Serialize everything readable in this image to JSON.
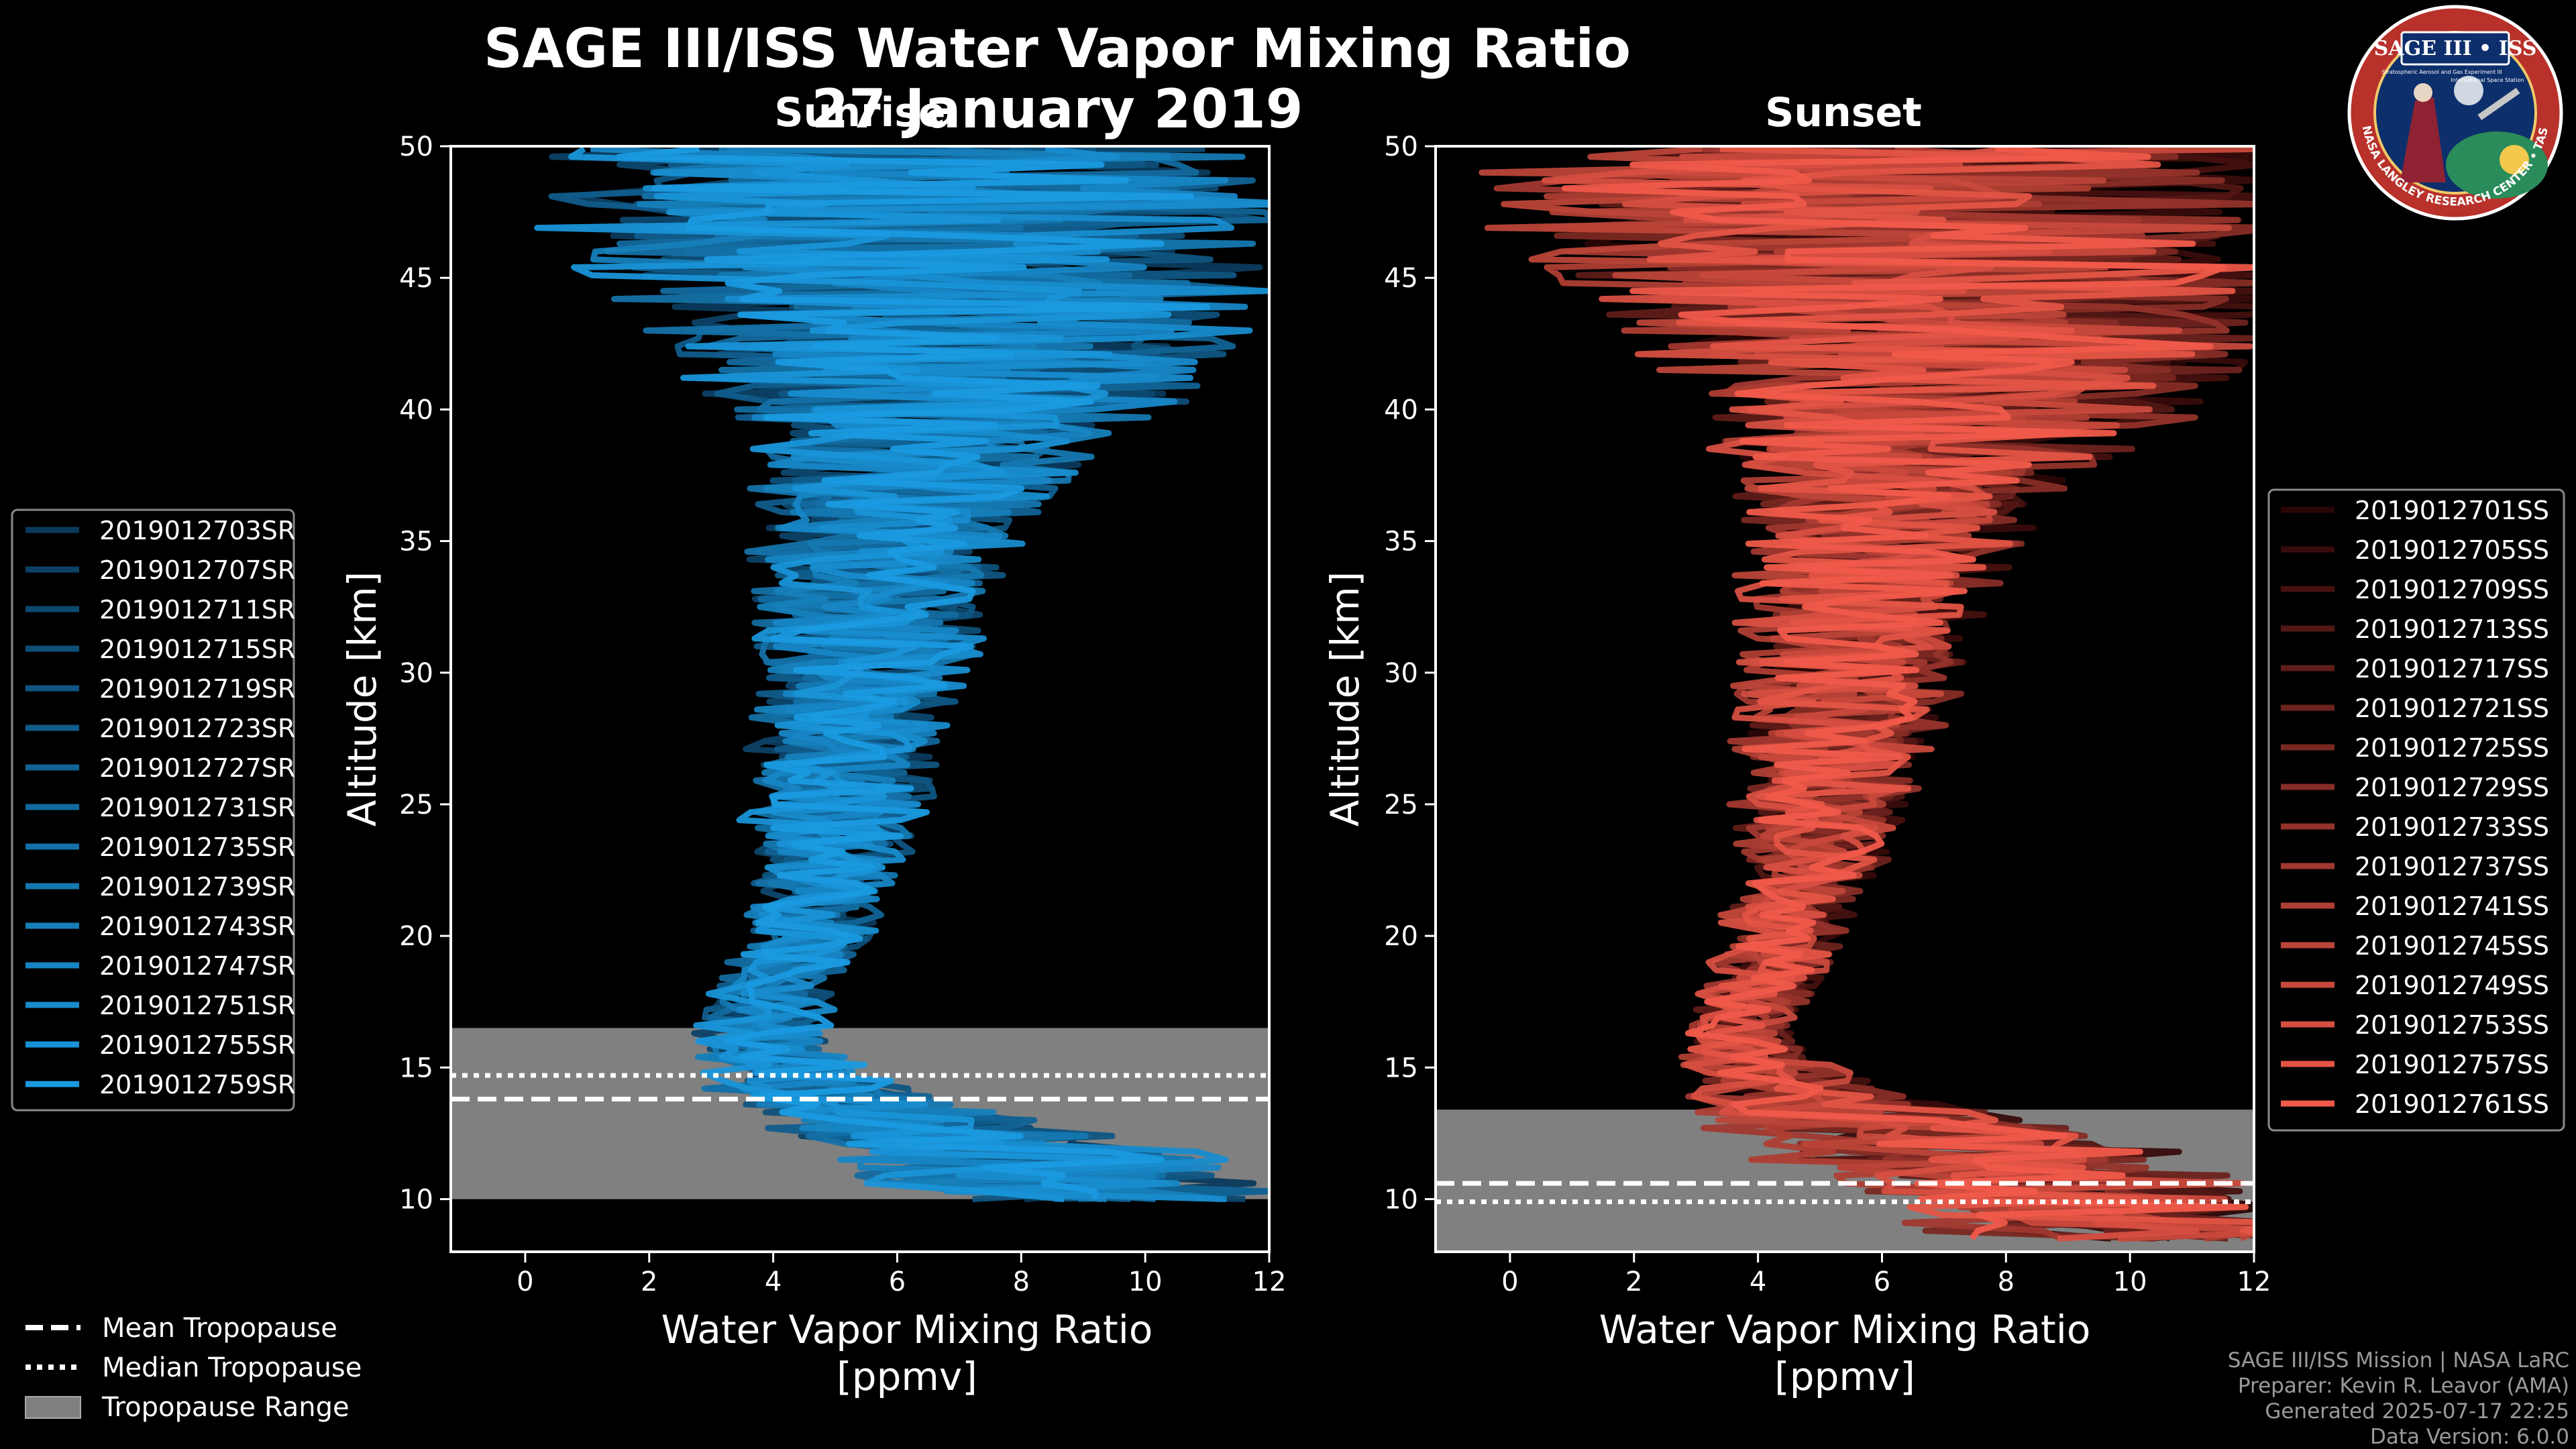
{
  "title": "SAGE III/ISS Water Vapor Mixing Ratio",
  "date": "27 January 2019",
  "colors": {
    "background": "#000000",
    "sunrise": "#1a9ae0",
    "sunset": "#f05a4a",
    "tropo_band": "#808080"
  },
  "logo": {
    "title": "SAGE III • ISS",
    "ring_text": "BALL • NASA LANGLEY RESEARCH CENTER • TAS-I • ESA",
    "inner_text_1": "Stratospheric Aerosol and Gas Experiment III",
    "inner_text_2": "International Space Station"
  },
  "chart_data": [
    {
      "type": "line",
      "panel": "Sunrise",
      "xlabel_line1": "Water Vapor Mixing Ratio",
      "xlabel_line2": "[ppmv]",
      "ylabel": "Altitude [km]",
      "xlim": [
        -1.2,
        12
      ],
      "ylim": [
        8,
        50
      ],
      "xticks": [
        0,
        2,
        4,
        6,
        8,
        10,
        12
      ],
      "yticks": [
        10,
        15,
        20,
        25,
        30,
        35,
        40,
        45,
        50
      ],
      "tropopause": {
        "mean": 13.8,
        "median": 14.7,
        "range": [
          10.0,
          16.5
        ]
      },
      "legend": [
        "2019012703SR",
        "2019012707SR",
        "2019012711SR",
        "2019012715SR",
        "2019012719SR",
        "2019012723SR",
        "2019012727SR",
        "2019012731SR",
        "2019012735SR",
        "2019012739SR",
        "2019012743SR",
        "2019012747SR",
        "2019012751SR",
        "2019012755SR",
        "2019012759SR"
      ],
      "profile_shape": {
        "altitudes_km": [
          10,
          12,
          14,
          16,
          18,
          20,
          22,
          25,
          28,
          30,
          33,
          36,
          38,
          40,
          42,
          45,
          48,
          50
        ],
        "center_ppmv": [
          9.0,
          7.5,
          4.5,
          3.8,
          4.0,
          4.5,
          4.8,
          5.0,
          5.2,
          5.4,
          5.6,
          5.8,
          6.2,
          6.8,
          7.0,
          6.5,
          6.0,
          6.0
        ],
        "spread_ppmv": [
          3.0,
          3.0,
          1.6,
          1.0,
          0.9,
          1.0,
          1.1,
          1.4,
          1.5,
          1.6,
          1.8,
          2.1,
          2.6,
          3.4,
          4.2,
          5.0,
          5.5,
          5.5
        ]
      }
    },
    {
      "type": "line",
      "panel": "Sunset",
      "xlabel_line1": "Water Vapor Mixing Ratio",
      "xlabel_line2": "[ppmv]",
      "ylabel": "Altitude [km]",
      "xlim": [
        -1.2,
        12
      ],
      "ylim": [
        8,
        50
      ],
      "xticks": [
        0,
        2,
        4,
        6,
        8,
        10,
        12
      ],
      "yticks": [
        10,
        15,
        20,
        25,
        30,
        35,
        40,
        45,
        50
      ],
      "tropopause": {
        "mean": 10.6,
        "median": 9.9,
        "range": [
          8.0,
          13.4
        ]
      },
      "legend": [
        "2019012701SS",
        "2019012705SS",
        "2019012709SS",
        "2019012713SS",
        "2019012717SS",
        "2019012721SS",
        "2019012725SS",
        "2019012729SS",
        "2019012733SS",
        "2019012737SS",
        "2019012741SS",
        "2019012745SS",
        "2019012749SS",
        "2019012753SS",
        "2019012757SS",
        "2019012761SS"
      ],
      "profile_shape": {
        "altitudes_km": [
          8.5,
          10,
          12,
          14,
          16,
          18,
          20,
          22,
          25,
          28,
          30,
          33,
          36,
          38,
          40,
          42,
          45,
          48,
          50
        ],
        "center_ppmv": [
          10.0,
          9.0,
          7.0,
          4.5,
          3.6,
          4.0,
          4.4,
          4.7,
          5.0,
          5.3,
          5.5,
          5.7,
          6.0,
          6.4,
          6.9,
          7.1,
          6.5,
          6.0,
          6.0
        ],
        "spread_ppmv": [
          3.0,
          3.0,
          3.0,
          1.5,
          0.8,
          0.8,
          0.9,
          1.0,
          1.3,
          1.5,
          1.6,
          1.8,
          2.2,
          2.8,
          3.6,
          4.4,
          5.2,
          5.6,
          5.6
        ]
      }
    }
  ],
  "bottom_legend": {
    "mean": "Mean Tropopause",
    "median": "Median Tropopause",
    "range": "Tropopause Range"
  },
  "credits": {
    "line1": "SAGE III/ISS Mission | NASA LaRC",
    "line2": "Preparer: Kevin R. Leavor (AMA)",
    "line3": "Generated 2025-07-17 22:25",
    "line4": "Data Version: 6.0.0"
  }
}
